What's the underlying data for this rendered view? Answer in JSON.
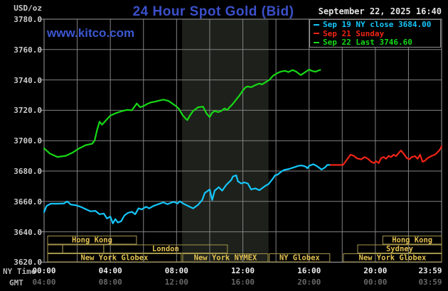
{
  "header": {
    "units": "USD/oz",
    "title": "24 Hour Spot Gold (Bid)",
    "site": "www.kitco.com",
    "datetime": "September 22, 2025 16:40"
  },
  "colors": {
    "title_blue": "#3b50c9",
    "link_blue": "#3c57d2",
    "cyan": "#14c6fa",
    "red": "#f02415",
    "green": "#16d916",
    "grid": "#828282",
    "border": "#9a9a9a",
    "band": "#1e211b",
    "session_border": "#a3954b",
    "session_text": "#e2c050"
  },
  "axes": {
    "ny_caption": "NY Time",
    "gmt_caption": "GMT",
    "y_labels": [
      "3780.0",
      "3760.0",
      "3740.0",
      "3720.0",
      "3700.0",
      "3680.0",
      "3660.0",
      "3640.0",
      "3620.0"
    ],
    "x_ny_labels": [
      "00:00",
      "04:00",
      "08:00",
      "12:00",
      "16:00",
      "20:00",
      "23:59"
    ],
    "x_gmt_labels": [
      "04:00",
      "08:00",
      "12:00",
      "16:00",
      "20:00",
      "00:00",
      "03:59"
    ],
    "x_hours": [
      0,
      4,
      8,
      12,
      16,
      20,
      24
    ]
  },
  "sessions": {
    "rows": [
      {
        "boxes": [
          {
            "start": 0.2,
            "end": 5.58,
            "label": "Hong Kong"
          },
          {
            "start": 20.45,
            "end": 24,
            "label": "Hong Kong"
          }
        ]
      },
      {
        "boxes": [
          {
            "start": 0.2,
            "end": 1.12,
            "label": ""
          },
          {
            "start": 1.12,
            "end": 3.6,
            "label": ""
          },
          {
            "start": 3.6,
            "end": 11.07,
            "label": "London"
          },
          {
            "start": 18.93,
            "end": 24,
            "label": "Sydney"
          }
        ]
      },
      {
        "boxes": [
          {
            "start": 0.2,
            "end": 8.28,
            "label": "New York Globex"
          },
          {
            "start": 8.37,
            "end": 13.52,
            "label": "New York NYMEX"
          },
          {
            "start": 13.6,
            "end": 17.25,
            "label": "NY Globex"
          },
          {
            "start": 18.07,
            "end": 24,
            "label": "New York Globex"
          }
        ]
      }
    ]
  },
  "chart_data": {
    "type": "line",
    "title": "24 Hour Spot Gold (Bid)",
    "ylabel": "USD/oz",
    "x_unit": "hours NY time",
    "xlim": [
      0,
      24
    ],
    "ylim": [
      3620,
      3780
    ],
    "y_tick_step": 20,
    "grid": true,
    "shaded_band_hours": [
      8.33,
      13.55
    ],
    "series": [
      {
        "name": "Sep 19 NY close 3684.00",
        "color_key": "cyan",
        "points": [
          [
            0,
            3653
          ],
          [
            0.15,
            3657
          ],
          [
            0.4,
            3658.5
          ],
          [
            0.8,
            3658.5
          ],
          [
            1.2,
            3658.7
          ],
          [
            1.4,
            3660
          ],
          [
            1.6,
            3658
          ],
          [
            1.9,
            3657.5
          ],
          [
            2.2,
            3656.5
          ],
          [
            2.5,
            3655
          ],
          [
            2.8,
            3653.5
          ],
          [
            3.1,
            3653.8
          ],
          [
            3.35,
            3651.6
          ],
          [
            3.6,
            3652
          ],
          [
            3.8,
            3648.8
          ],
          [
            4.0,
            3650
          ],
          [
            4.15,
            3645.5
          ],
          [
            4.3,
            3648.4
          ],
          [
            4.45,
            3646.1
          ],
          [
            4.65,
            3646.9
          ],
          [
            4.85,
            3650.8
          ],
          [
            5.05,
            3652.4
          ],
          [
            5.3,
            3653.2
          ],
          [
            5.5,
            3651.6
          ],
          [
            5.7,
            3655.4
          ],
          [
            5.9,
            3654.7
          ],
          [
            6.15,
            3656.5
          ],
          [
            6.35,
            3655.4
          ],
          [
            6.6,
            3657
          ],
          [
            6.8,
            3657.8
          ],
          [
            7.0,
            3658.6
          ],
          [
            7.2,
            3659.4
          ],
          [
            7.45,
            3658.2
          ],
          [
            7.65,
            3659.1
          ],
          [
            7.85,
            3659.7
          ],
          [
            8.05,
            3658.6
          ],
          [
            8.2,
            3660.1
          ],
          [
            8.4,
            3658.6
          ],
          [
            8.7,
            3657
          ],
          [
            9.0,
            3655.4
          ],
          [
            9.3,
            3657.8
          ],
          [
            9.55,
            3661
          ],
          [
            9.7,
            3665.5
          ],
          [
            10.0,
            3667.9
          ],
          [
            10.15,
            3660.9
          ],
          [
            10.3,
            3667.1
          ],
          [
            10.55,
            3669.4
          ],
          [
            10.75,
            3667.1
          ],
          [
            11.0,
            3670.9
          ],
          [
            11.3,
            3674.1
          ],
          [
            11.4,
            3676.4
          ],
          [
            11.6,
            3677.2
          ],
          [
            11.7,
            3673.3
          ],
          [
            11.9,
            3671.8
          ],
          [
            12.1,
            3672.5
          ],
          [
            12.3,
            3671.8
          ],
          [
            12.5,
            3667.9
          ],
          [
            12.75,
            3668.6
          ],
          [
            13.0,
            3667.4
          ],
          [
            13.35,
            3670.2
          ],
          [
            13.55,
            3671.4
          ],
          [
            13.8,
            3674.8
          ],
          [
            13.95,
            3677.2
          ],
          [
            14.1,
            3677.6
          ],
          [
            14.3,
            3679.5
          ],
          [
            14.5,
            3680.7
          ],
          [
            14.8,
            3681.4
          ],
          [
            15.05,
            3682.3
          ],
          [
            15.35,
            3683.4
          ],
          [
            15.55,
            3683.7
          ],
          [
            15.8,
            3682.9
          ],
          [
            15.9,
            3681.8
          ],
          [
            16.0,
            3683.4
          ],
          [
            16.25,
            3684.5
          ],
          [
            16.4,
            3683.7
          ],
          [
            16.6,
            3682.3
          ],
          [
            16.75,
            3681
          ],
          [
            16.95,
            3682.3
          ],
          [
            17.1,
            3684
          ],
          [
            17.3,
            3684
          ]
        ]
      },
      {
        "name": "Sep 21 Sunday",
        "color_key": "red",
        "points": [
          [
            17.3,
            3684
          ],
          [
            18.05,
            3684
          ],
          [
            18.3,
            3687.7
          ],
          [
            18.5,
            3690.8
          ],
          [
            18.7,
            3690
          ],
          [
            18.9,
            3688.3
          ],
          [
            19.15,
            3687.7
          ],
          [
            19.35,
            3689.2
          ],
          [
            19.55,
            3688.1
          ],
          [
            19.75,
            3686.1
          ],
          [
            19.9,
            3685.3
          ],
          [
            20.05,
            3686.5
          ],
          [
            20.2,
            3685.3
          ],
          [
            20.35,
            3688.5
          ],
          [
            20.5,
            3689.2
          ],
          [
            20.65,
            3688.1
          ],
          [
            20.8,
            3690
          ],
          [
            20.95,
            3689.2
          ],
          [
            21.1,
            3690.8
          ],
          [
            21.25,
            3689.8
          ],
          [
            21.45,
            3692.4
          ],
          [
            21.55,
            3693.5
          ],
          [
            21.7,
            3691.6
          ],
          [
            21.9,
            3688.5
          ],
          [
            22.05,
            3687.7
          ],
          [
            22.2,
            3689.2
          ],
          [
            22.4,
            3689.8
          ],
          [
            22.55,
            3688.1
          ],
          [
            22.7,
            3690.8
          ],
          [
            22.85,
            3686.1
          ],
          [
            23.0,
            3686.8
          ],
          [
            23.15,
            3688.5
          ],
          [
            23.4,
            3690
          ],
          [
            23.6,
            3690.8
          ],
          [
            23.75,
            3692.4
          ],
          [
            23.85,
            3693.5
          ],
          [
            23.95,
            3695
          ],
          [
            24.0,
            3696.3
          ]
        ]
      },
      {
        "name": "Sep 22 Last 3746.60",
        "color_key": "green",
        "points": [
          [
            0,
            3695
          ],
          [
            0.35,
            3691.5
          ],
          [
            0.8,
            3689.3
          ],
          [
            1.3,
            3690
          ],
          [
            1.7,
            3692
          ],
          [
            2.1,
            3694.8
          ],
          [
            2.5,
            3697
          ],
          [
            2.9,
            3698
          ],
          [
            3.05,
            3700
          ],
          [
            3.2,
            3707
          ],
          [
            3.35,
            3712.5
          ],
          [
            3.5,
            3710.5
          ],
          [
            3.7,
            3713
          ],
          [
            4.0,
            3716.5
          ],
          [
            4.3,
            3718
          ],
          [
            4.7,
            3719.5
          ],
          [
            5.0,
            3720.3
          ],
          [
            5.3,
            3720
          ],
          [
            5.6,
            3724.5
          ],
          [
            5.8,
            3722
          ],
          [
            6.0,
            3722.8
          ],
          [
            6.2,
            3724
          ],
          [
            6.45,
            3725.2
          ],
          [
            6.7,
            3725.7
          ],
          [
            6.95,
            3726.4
          ],
          [
            7.2,
            3727
          ],
          [
            7.5,
            3726.2
          ],
          [
            7.8,
            3724
          ],
          [
            8.0,
            3722.5
          ],
          [
            8.15,
            3720.8
          ],
          [
            8.35,
            3717
          ],
          [
            8.55,
            3714.5
          ],
          [
            8.65,
            3713.6
          ],
          [
            8.8,
            3716.5
          ],
          [
            9.0,
            3719.6
          ],
          [
            9.3,
            3722
          ],
          [
            9.6,
            3722.4
          ],
          [
            9.8,
            3718
          ],
          [
            10.0,
            3715.5
          ],
          [
            10.15,
            3718.4
          ],
          [
            10.3,
            3719.6
          ],
          [
            10.5,
            3718.8
          ],
          [
            10.7,
            3719.6
          ],
          [
            10.9,
            3721.2
          ],
          [
            11.05,
            3720.2
          ],
          [
            11.2,
            3722
          ],
          [
            11.4,
            3724.3
          ],
          [
            11.6,
            3727.1
          ],
          [
            11.8,
            3729.8
          ],
          [
            12.0,
            3733
          ],
          [
            12.15,
            3735
          ],
          [
            12.3,
            3735.7
          ],
          [
            12.5,
            3735.2
          ],
          [
            12.8,
            3736.8
          ],
          [
            13.0,
            3737.6
          ],
          [
            13.15,
            3737
          ],
          [
            13.35,
            3738.3
          ],
          [
            13.6,
            3740
          ],
          [
            13.8,
            3742.5
          ],
          [
            14.0,
            3744
          ],
          [
            14.3,
            3745.5
          ],
          [
            14.55,
            3746
          ],
          [
            14.75,
            3745.2
          ],
          [
            15.0,
            3746.5
          ],
          [
            15.2,
            3745.6
          ],
          [
            15.5,
            3743.2
          ],
          [
            15.75,
            3745
          ],
          [
            16.0,
            3746.8
          ],
          [
            16.2,
            3745.8
          ],
          [
            16.4,
            3745.4
          ],
          [
            16.55,
            3746.1
          ],
          [
            16.67,
            3746.6
          ]
        ]
      }
    ]
  }
}
